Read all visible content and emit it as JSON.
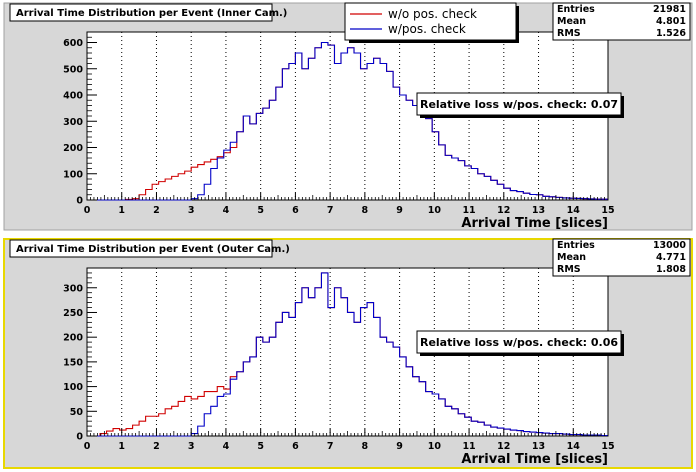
{
  "colors": {
    "pad_background": "#d7d7d7",
    "frame_border": "#a0a0a0",
    "selected_border": "#e8d800",
    "axes_background": "#ffffff",
    "series_without_check": "#d00000",
    "series_with_check": "#0000c8"
  },
  "legend": {
    "entries": [
      "w/o pos. check",
      "w/pos. check"
    ]
  },
  "chart_data": [
    {
      "type": "step",
      "title": "Arrival Time Distribution per Event (Inner Cam.)",
      "xlabel": "Arrival Time [slices]",
      "ylabel": "",
      "xlim": [
        0,
        15
      ],
      "ylim": [
        0,
        640
      ],
      "xticks": [
        0,
        1,
        2,
        3,
        4,
        5,
        6,
        7,
        8,
        9,
        10,
        11,
        12,
        13,
        14,
        15
      ],
      "yticks": [
        0,
        100,
        200,
        300,
        400,
        500,
        600
      ],
      "grid_x": "dotted vertical lines at integer x",
      "stats": {
        "rows": [
          {
            "label": "Entries",
            "value": "21981"
          },
          {
            "label": "Mean",
            "value": "4.801"
          },
          {
            "label": "RMS",
            "value": "1.526"
          }
        ]
      },
      "annotation": "Relative loss w/pos. check: 0.07",
      "bin_width": 0.1875,
      "series": [
        {
          "name": "w/o pos. check",
          "values": [
            0,
            0,
            0,
            0,
            0,
            0,
            2,
            5,
            20,
            40,
            60,
            70,
            80,
            90,
            100,
            110,
            125,
            135,
            145,
            155,
            165,
            180,
            200,
            260,
            320,
            290,
            330,
            350,
            380,
            430,
            500,
            520,
            560,
            500,
            540,
            580,
            600,
            590,
            520,
            560,
            580,
            560,
            500,
            520,
            540,
            520,
            490,
            430,
            400,
            380,
            360,
            350,
            310,
            260,
            210,
            170,
            160,
            150,
            130,
            120,
            100,
            90,
            75,
            60,
            45,
            36,
            32,
            26,
            21,
            20,
            14,
            12,
            10,
            8,
            7,
            6,
            5,
            4,
            3,
            3,
            2,
            2,
            2,
            1,
            1,
            1,
            0,
            0,
            0,
            0
          ]
        },
        {
          "name": "w/pos. check",
          "values": [
            0,
            0,
            0,
            0,
            0,
            0,
            0,
            0,
            0,
            0,
            0,
            0,
            0,
            0,
            0,
            0,
            5,
            20,
            60,
            120,
            160,
            190,
            220,
            260,
            320,
            290,
            330,
            350,
            380,
            430,
            500,
            520,
            560,
            500,
            540,
            580,
            600,
            590,
            520,
            560,
            580,
            560,
            500,
            520,
            540,
            520,
            490,
            430,
            400,
            380,
            360,
            350,
            310,
            260,
            210,
            170,
            160,
            150,
            130,
            120,
            100,
            90,
            75,
            60,
            45,
            36,
            32,
            26,
            21,
            20,
            14,
            12,
            10,
            8,
            7,
            6,
            5,
            4,
            3,
            3,
            2,
            2,
            2,
            1,
            1,
            1,
            0,
            0,
            0,
            0
          ]
        }
      ]
    },
    {
      "type": "step",
      "title": "Arrival Time Distribution per Event (Outer Cam.)",
      "xlabel": "Arrival Time [slices]",
      "ylabel": "",
      "xlim": [
        0,
        15
      ],
      "ylim": [
        0,
        340
      ],
      "xticks": [
        0,
        1,
        2,
        3,
        4,
        5,
        6,
        7,
        8,
        9,
        10,
        11,
        12,
        13,
        14,
        15
      ],
      "yticks": [
        0,
        50,
        100,
        150,
        200,
        250,
        300
      ],
      "grid_x": "dotted vertical lines at integer x",
      "stats": {
        "rows": [
          {
            "label": "Entries",
            "value": "13000"
          },
          {
            "label": "Mean",
            "value": "4.771"
          },
          {
            "label": "RMS",
            "value": "1.808"
          }
        ]
      },
      "annotation": "Relative loss w/pos. check: 0.06",
      "bin_width": 0.1875,
      "series": [
        {
          "name": "w/o pos. check",
          "values": [
            0,
            0,
            5,
            10,
            15,
            12,
            15,
            22,
            30,
            40,
            40,
            45,
            55,
            60,
            70,
            80,
            75,
            80,
            90,
            90,
            100,
            95,
            120,
            130,
            150,
            160,
            200,
            190,
            200,
            230,
            250,
            240,
            270,
            300,
            280,
            300,
            330,
            260,
            300,
            280,
            250,
            230,
            260,
            270,
            240,
            200,
            190,
            180,
            160,
            140,
            120,
            110,
            90,
            85,
            75,
            60,
            55,
            45,
            38,
            30,
            28,
            22,
            18,
            16,
            14,
            12,
            11,
            9,
            8,
            7,
            6,
            5,
            5,
            4,
            3,
            3,
            2,
            2,
            2,
            1,
            1,
            1,
            1,
            1,
            0,
            0,
            0,
            0,
            0,
            0
          ]
        },
        {
          "name": "w/pos. check",
          "values": [
            0,
            0,
            0,
            0,
            0,
            0,
            0,
            0,
            0,
            0,
            0,
            0,
            0,
            0,
            0,
            0,
            5,
            20,
            45,
            60,
            80,
            85,
            115,
            130,
            150,
            160,
            200,
            190,
            200,
            230,
            250,
            240,
            270,
            300,
            280,
            300,
            330,
            260,
            300,
            280,
            250,
            230,
            260,
            270,
            240,
            200,
            190,
            180,
            160,
            140,
            120,
            110,
            90,
            85,
            75,
            60,
            55,
            45,
            38,
            30,
            28,
            22,
            18,
            16,
            14,
            12,
            11,
            9,
            8,
            7,
            6,
            5,
            5,
            4,
            3,
            3,
            2,
            2,
            2,
            1,
            1,
            1,
            1,
            1,
            0,
            0,
            0,
            0,
            0,
            0
          ]
        }
      ]
    }
  ]
}
